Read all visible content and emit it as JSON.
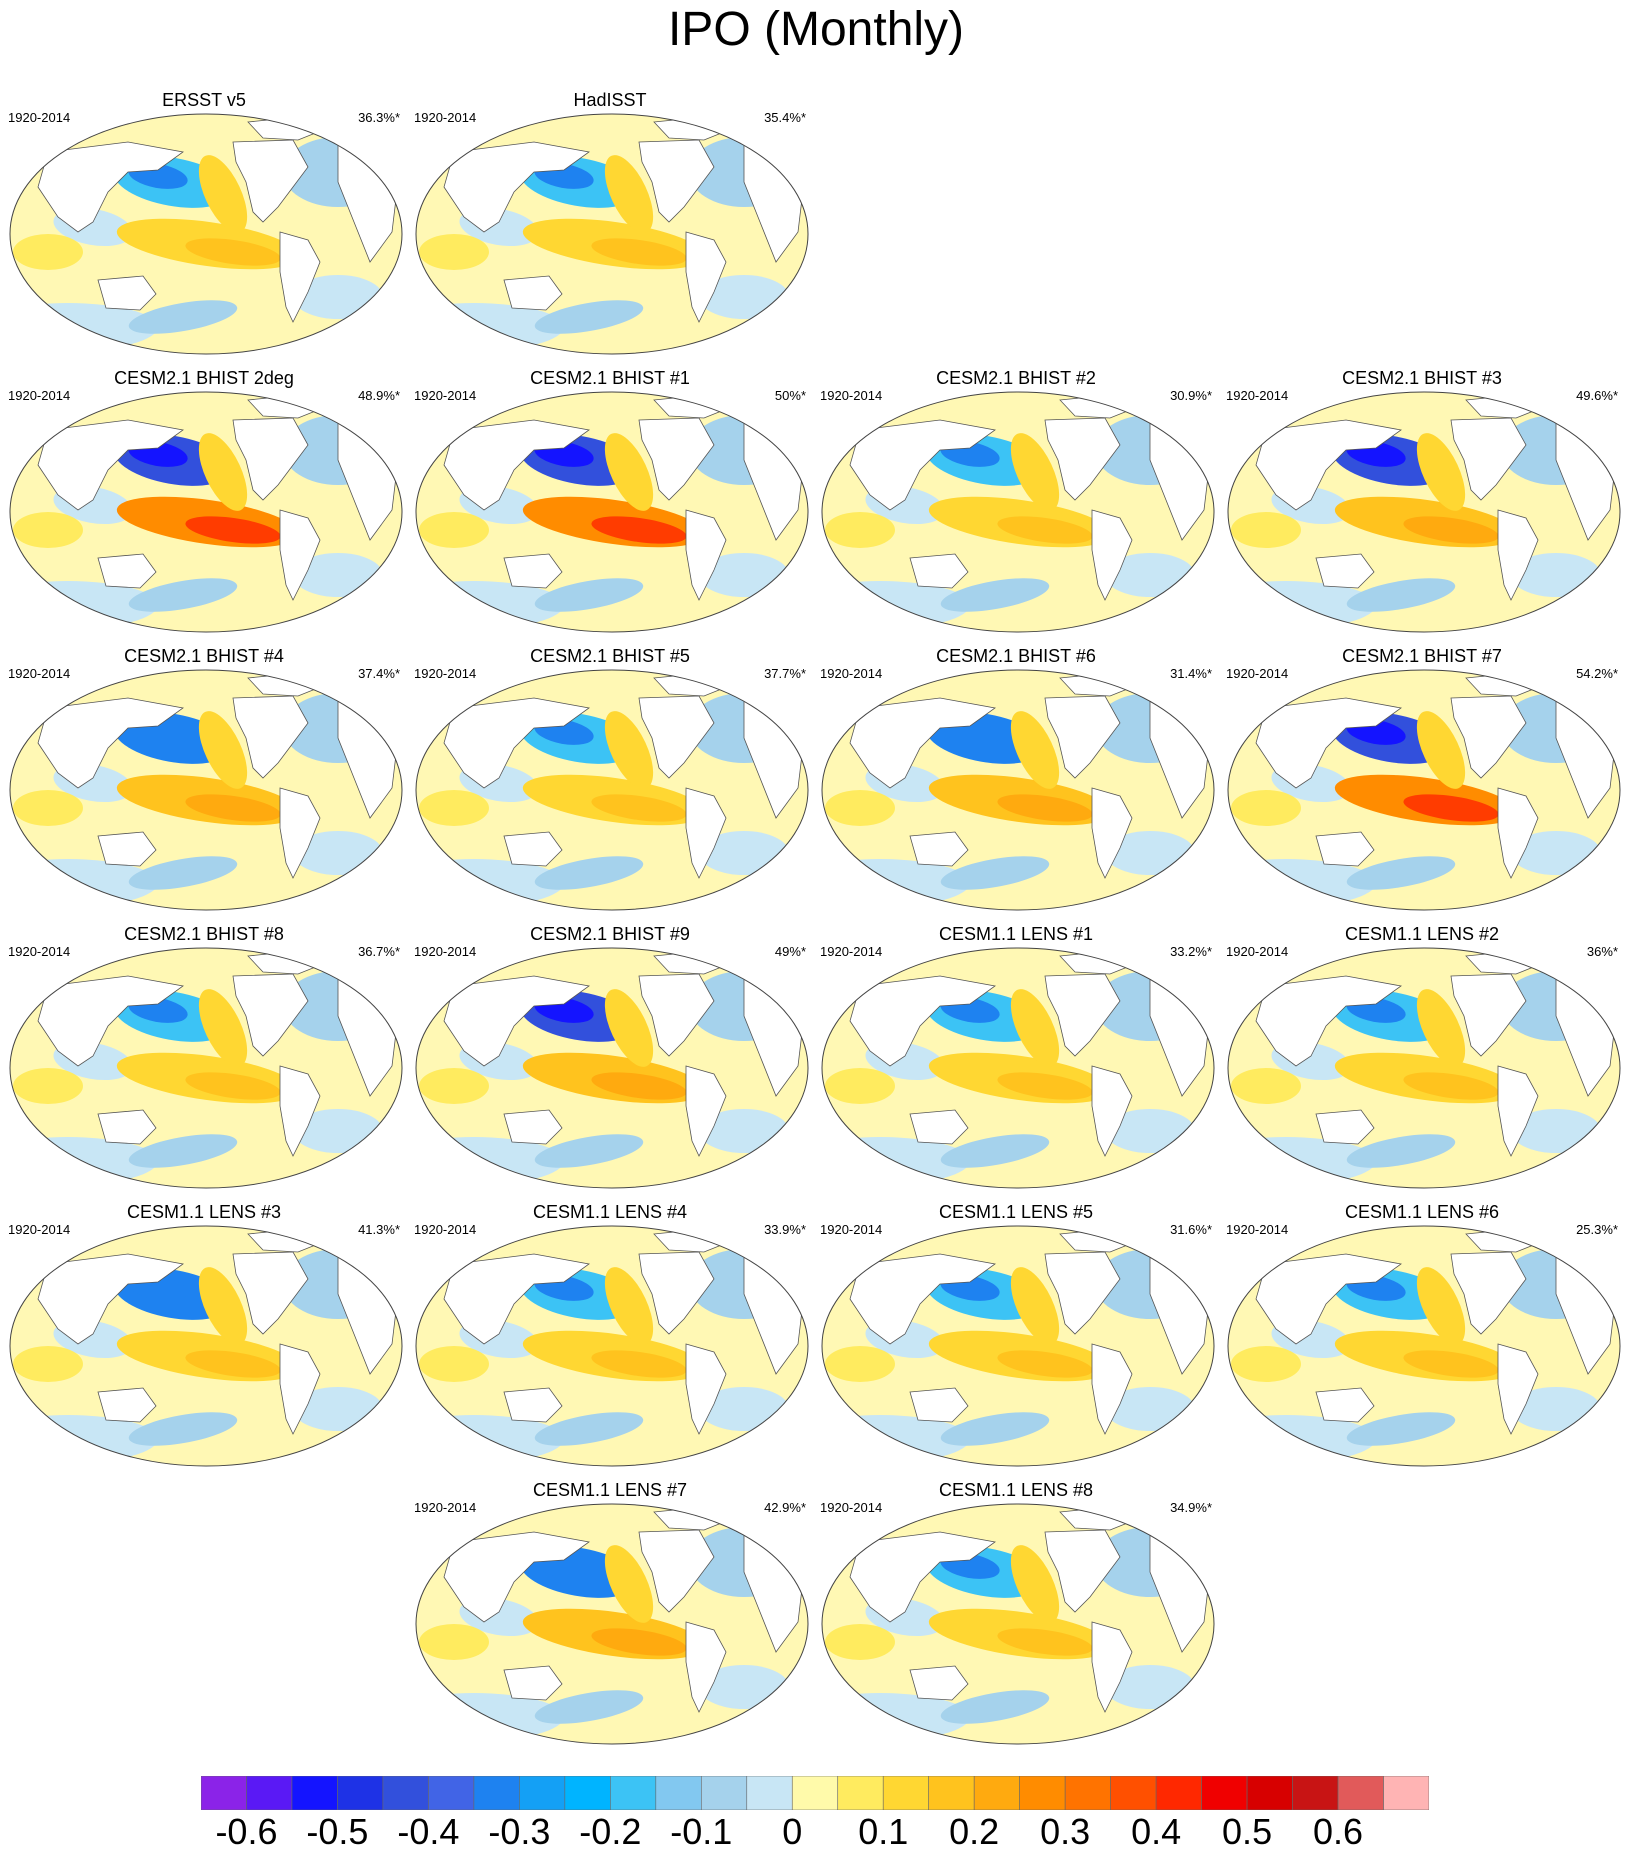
{
  "title": "IPO (Monthly)",
  "panels": [
    {
      "title": "ERSST v5",
      "period": "1920-2014",
      "pct": "36.3%*",
      "strength": 0.55
    },
    {
      "title": "HadISST",
      "period": "1920-2014",
      "pct": "35.4%*",
      "strength": 0.5
    },
    {
      "title": "CESM2.1 BHIST 2deg",
      "period": "1920-2014",
      "pct": "48.9%*",
      "strength": 0.9
    },
    {
      "title": "CESM2.1 BHIST #1",
      "period": "1920-2014",
      "pct": "50%*",
      "strength": 0.95
    },
    {
      "title": "CESM2.1 BHIST #2",
      "period": "1920-2014",
      "pct": "30.9%*",
      "strength": 0.6
    },
    {
      "title": "CESM2.1 BHIST #3",
      "period": "1920-2014",
      "pct": "49.6%*",
      "strength": 0.85
    },
    {
      "title": "CESM2.1 BHIST #4",
      "period": "1920-2014",
      "pct": "37.4%*",
      "strength": 0.7
    },
    {
      "title": "CESM2.1 BHIST #5",
      "period": "1920-2014",
      "pct": "37.7%*",
      "strength": 0.55
    },
    {
      "title": "CESM2.1 BHIST #6",
      "period": "1920-2014",
      "pct": "31.4%*",
      "strength": 0.7
    },
    {
      "title": "CESM2.1 BHIST #7",
      "period": "1920-2014",
      "pct": "54.2%*",
      "strength": 0.95
    },
    {
      "title": "CESM2.1 BHIST #8",
      "period": "1920-2014",
      "pct": "36.7%*",
      "strength": 0.6
    },
    {
      "title": "CESM2.1 BHIST #9",
      "period": "1920-2014",
      "pct": "49%*",
      "strength": 0.85
    },
    {
      "title": "CESM1.1 LENS #1",
      "period": "1920-2014",
      "pct": "33.2%*",
      "strength": 0.6
    },
    {
      "title": "CESM1.1 LENS #2",
      "period": "1920-2014",
      "pct": "36%*",
      "strength": 0.5
    },
    {
      "title": "CESM1.1 LENS #3",
      "period": "1920-2014",
      "pct": "41.3%*",
      "strength": 0.65
    },
    {
      "title": "CESM1.1 LENS #4",
      "period": "1920-2014",
      "pct": "33.9%*",
      "strength": 0.6
    },
    {
      "title": "CESM1.1 LENS #5",
      "period": "1920-2014",
      "pct": "31.6%*",
      "strength": 0.6
    },
    {
      "title": "CESM1.1 LENS #6",
      "period": "1920-2014",
      "pct": "25.3%*",
      "strength": 0.5
    },
    {
      "title": "CESM1.1 LENS #7",
      "period": "1920-2014",
      "pct": "42.9%*",
      "strength": 0.7
    },
    {
      "title": "CESM1.1 LENS #8",
      "period": "1920-2014",
      "pct": "34.9%*",
      "strength": 0.55
    }
  ],
  "colorbar": {
    "colors": [
      "#8b23e8",
      "#5a19f5",
      "#1414ff",
      "#1e32e6",
      "#3250dc",
      "#4164e6",
      "#1e82f0",
      "#14a0f5",
      "#00b4ff",
      "#3cc3f5",
      "#82c8f0",
      "#a5d2ec",
      "#c8e6f5",
      "#fffaaa",
      "#ffeb5f",
      "#ffd732",
      "#ffc31e",
      "#ffaa0f",
      "#ff8c00",
      "#ff7300",
      "#ff5000",
      "#ff2800",
      "#f00000",
      "#d70000",
      "#c81414",
      "#e15a5a",
      "#ffb4b4"
    ],
    "tick_labels": [
      "-0.6",
      "-0.5",
      "-0.4",
      "-0.3",
      "-0.2",
      "-0.1",
      "0",
      "0.1",
      "0.2",
      "0.3",
      "0.4",
      "0.5",
      "0.6"
    ]
  }
}
